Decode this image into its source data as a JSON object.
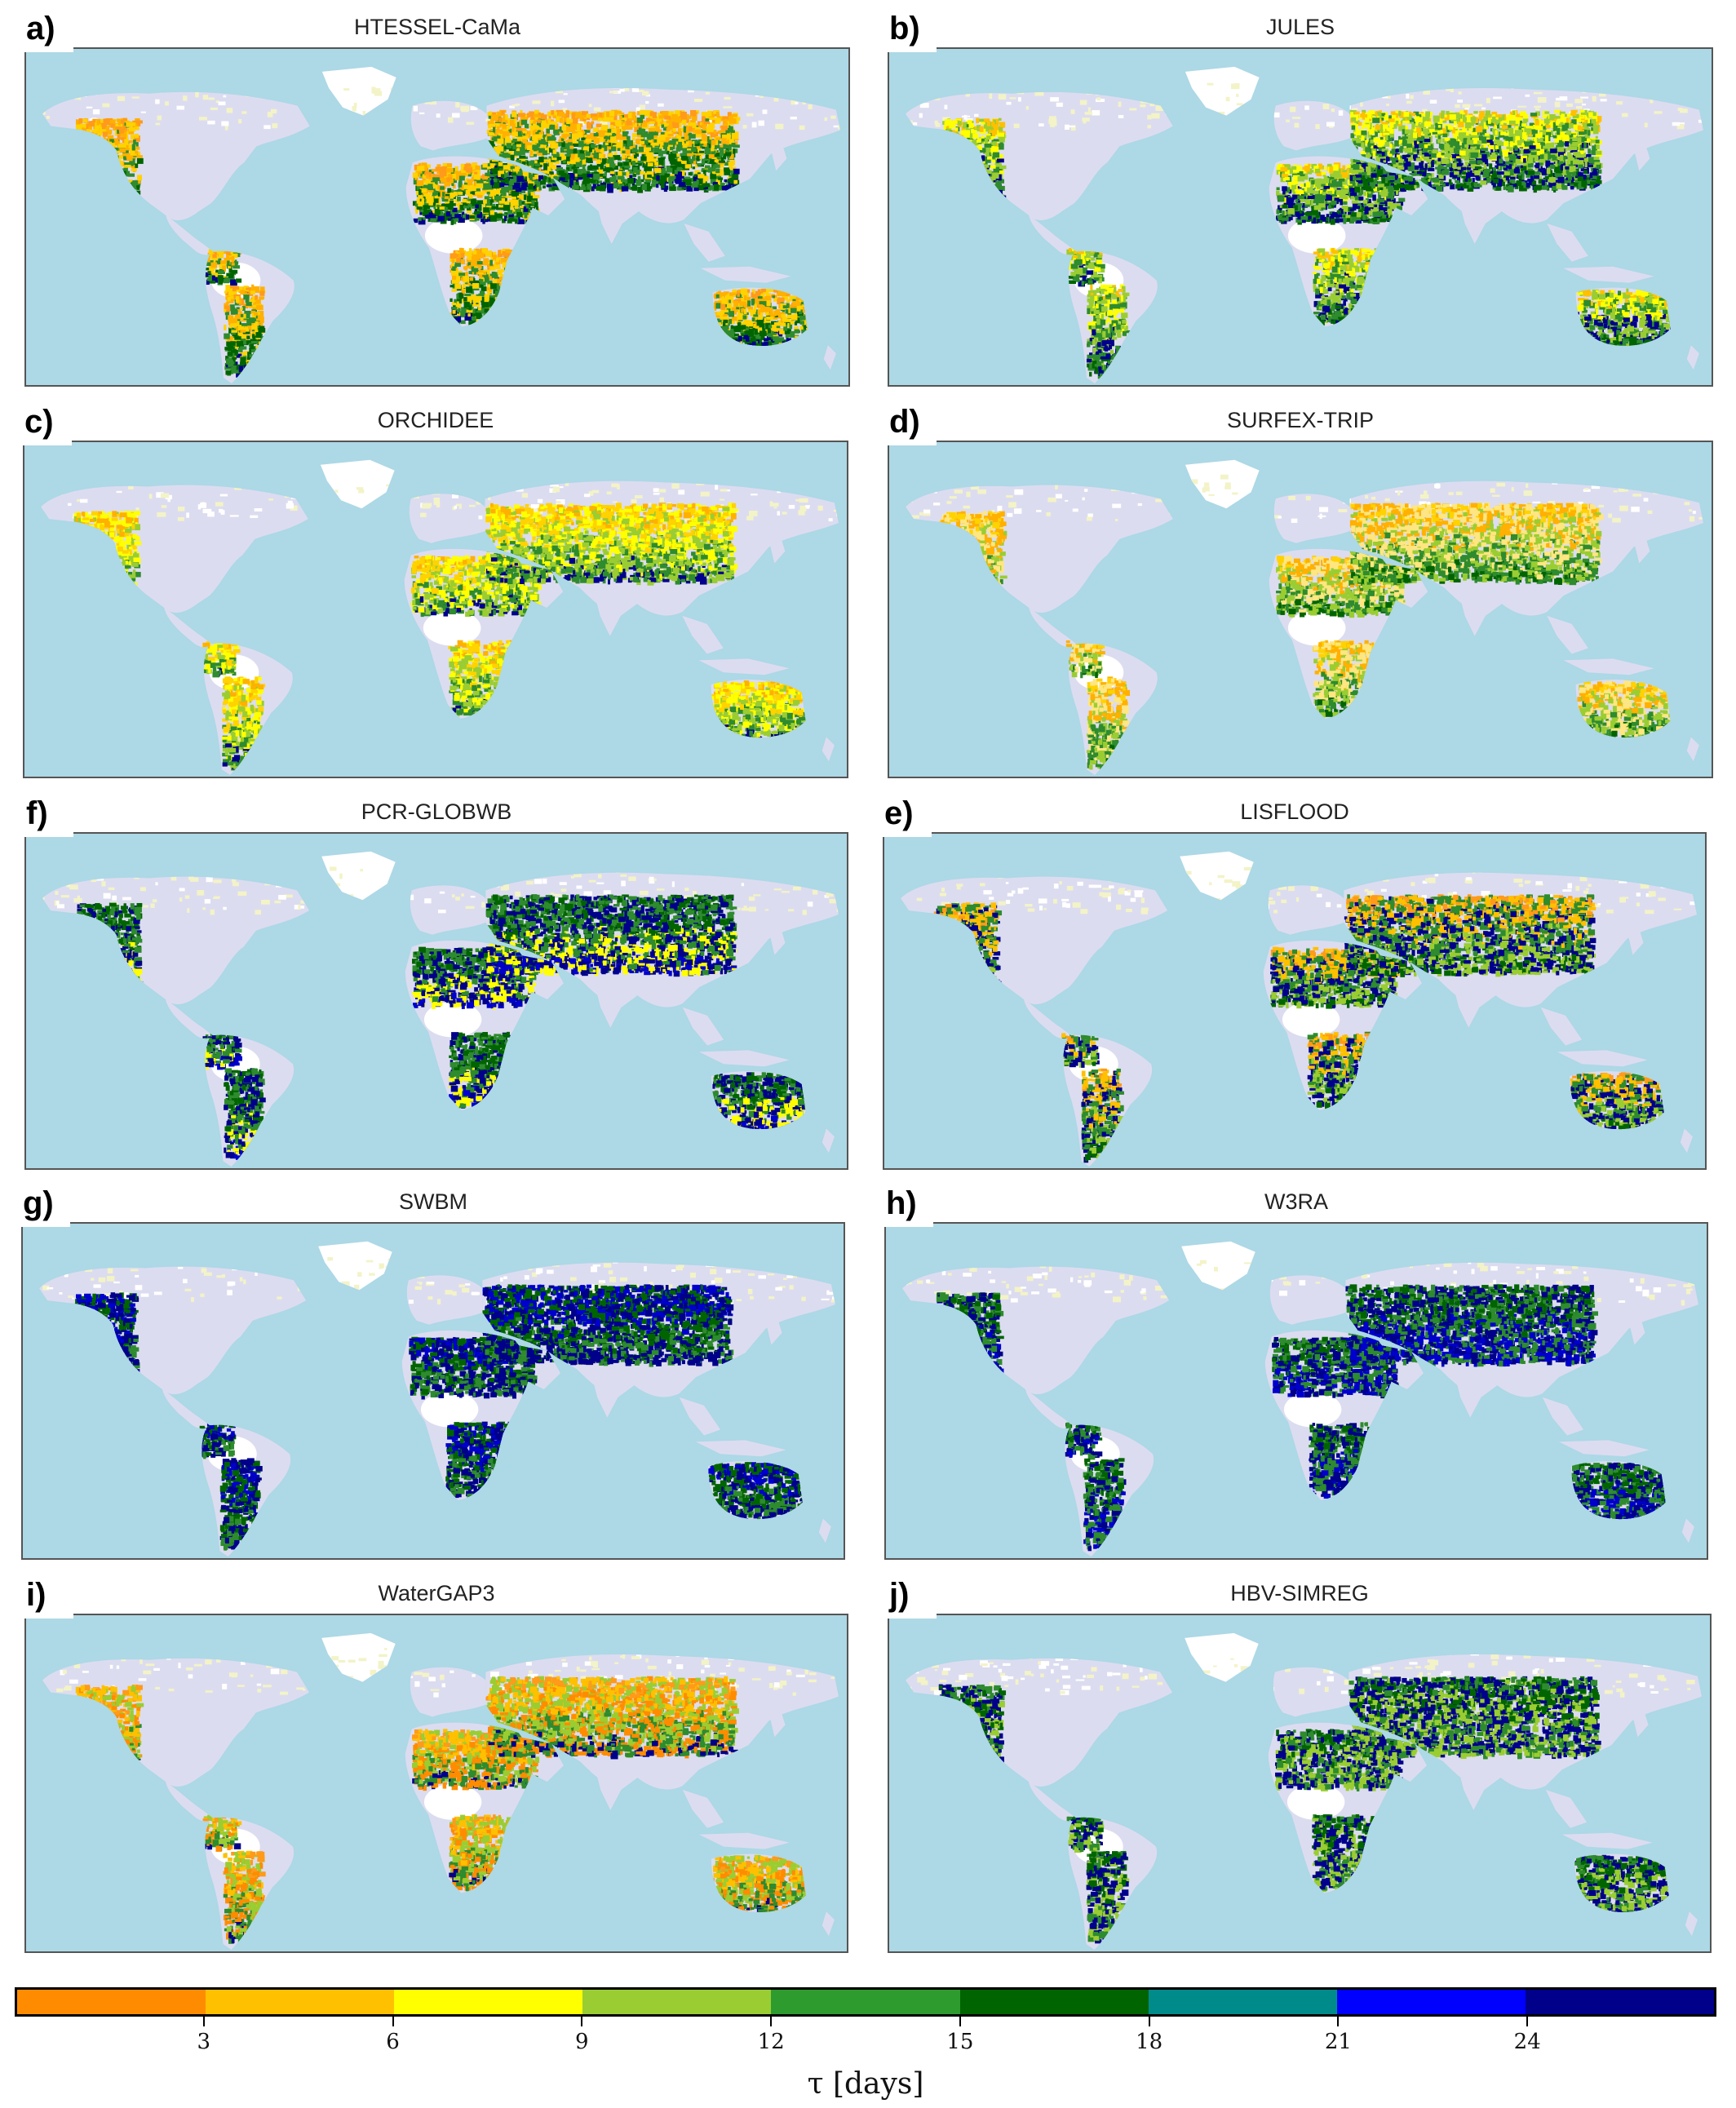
{
  "colors": {
    "ocean": "#add8e6",
    "no_data": "#ffffff",
    "lavender": "#dcdcf0",
    "pale_yellow": "#f3f3c8",
    "bins": [
      "#ff8c00",
      "#ffc000",
      "#ffff00",
      "#9acd32",
      "#2e9b2e",
      "#006400",
      "#008b8b",
      "#0000ff",
      "#00008b"
    ]
  },
  "panels": [
    {
      "letter": "a)",
      "title": "HTESSEL-CaMa",
      "scheme": [
        "#ff9a1a",
        "#ffb000",
        "#ffd200",
        "#2e8b2e",
        "#006400",
        "#00008b"
      ]
    },
    {
      "letter": "b)",
      "title": "JULES",
      "scheme": [
        "#ffc000",
        "#ffff00",
        "#9acd32",
        "#2e8b2e",
        "#00008b",
        "#006400"
      ]
    },
    {
      "letter": "c)",
      "title": "ORCHIDEE",
      "scheme": [
        "#ffb000",
        "#ffd200",
        "#ffff00",
        "#9acd32",
        "#2e8b2e",
        "#00008b"
      ]
    },
    {
      "letter": "d)",
      "title": "SURFEX-TRIP",
      "scheme": [
        "#ffd200",
        "#ffb000",
        "#ffe680",
        "#9acd32",
        "#2e8b2e",
        "#006400"
      ]
    },
    {
      "letter": "f)",
      "title": "PCR-GLOBWB",
      "scheme": [
        "#00008b",
        "#006400",
        "#2e8b2e",
        "#00008b",
        "#ffff00",
        "#0000cd"
      ]
    },
    {
      "letter": "e)",
      "title": "LISFLOOD",
      "scheme": [
        "#ff9a1a",
        "#ffc000",
        "#2e8b2e",
        "#00008b",
        "#9acd32",
        "#006400"
      ]
    },
    {
      "letter": "g)",
      "title": "SWBM",
      "scheme": [
        "#00008b",
        "#0000cd",
        "#006400",
        "#00008b",
        "#2e8b2e",
        "#00008b"
      ]
    },
    {
      "letter": "h)",
      "title": "W3RA",
      "scheme": [
        "#2e8b2e",
        "#006400",
        "#00008b",
        "#2e8b2e",
        "#0000cd",
        "#00008b"
      ]
    },
    {
      "letter": "i)",
      "title": "WaterGAP3",
      "scheme": [
        "#ff9a1a",
        "#ffc000",
        "#9acd32",
        "#ff8c00",
        "#2e8b2e",
        "#00008b"
      ]
    },
    {
      "letter": "j)",
      "title": "HBV-SIMREG",
      "scheme": [
        "#2e8b2e",
        "#006400",
        "#00008b",
        "#9acd32",
        "#2e8b2e",
        "#00008b"
      ]
    }
  ],
  "colorbar": {
    "ticks": [
      "3",
      "6",
      "9",
      "12",
      "15",
      "18",
      "21",
      "24"
    ],
    "label": "τ [days]"
  }
}
